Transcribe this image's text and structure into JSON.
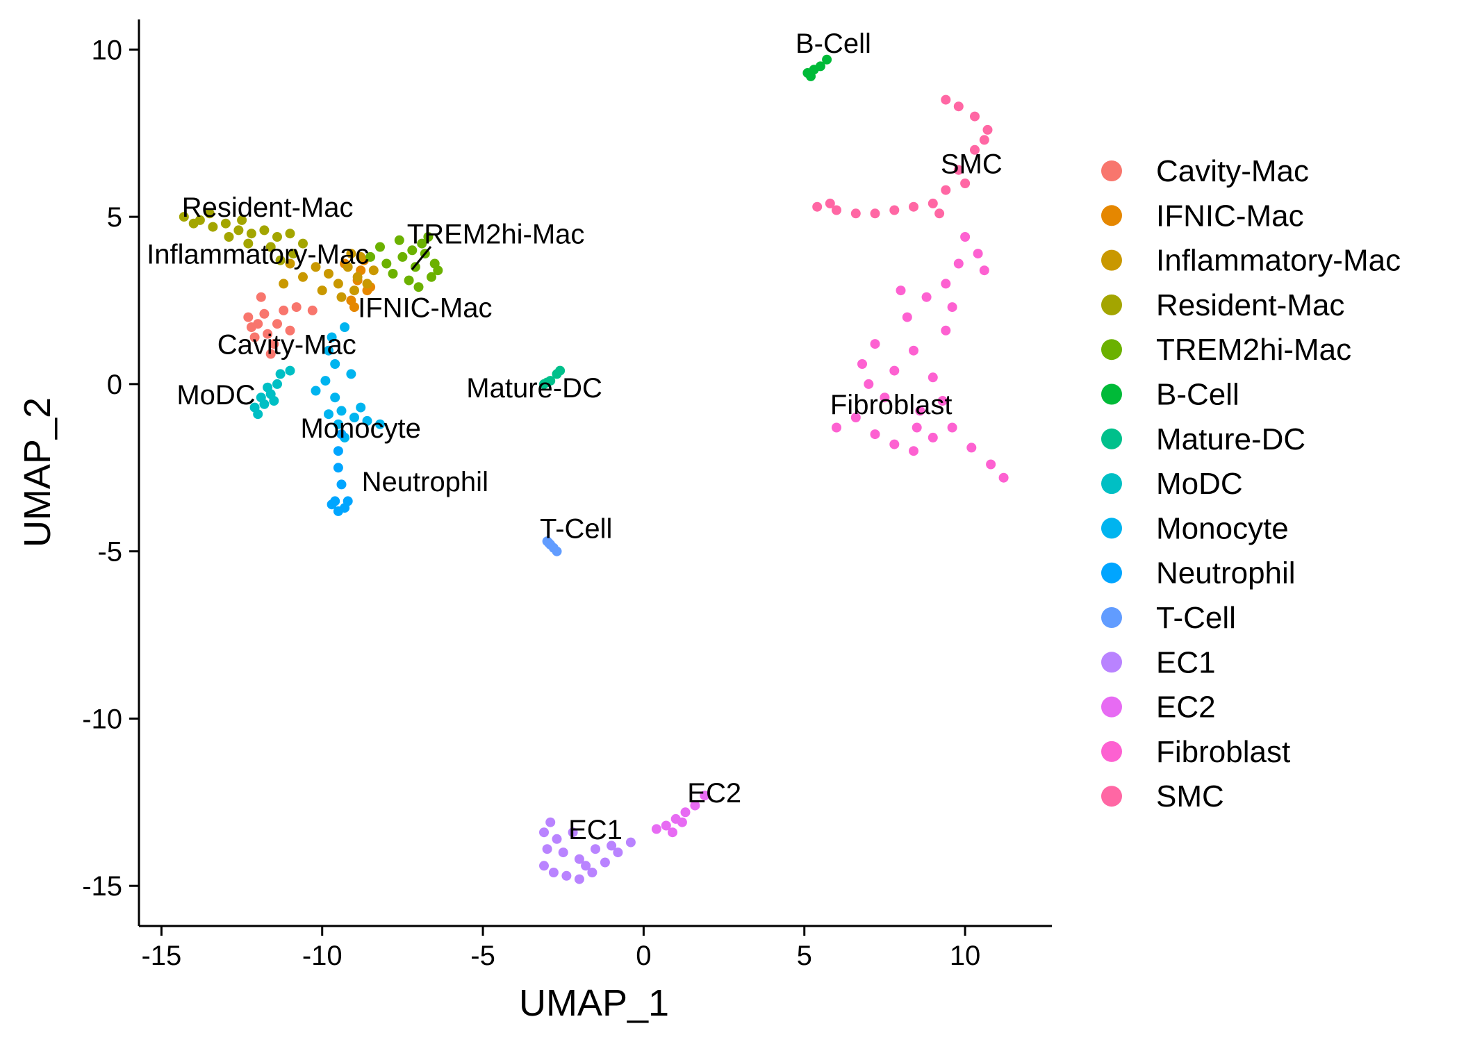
{
  "chart_data": {
    "type": "scatter",
    "title": "",
    "xlabel": "UMAP_1",
    "ylabel": "UMAP_2",
    "xlim": [
      -15.7,
      12.7
    ],
    "ylim": [
      -16.2,
      10.9
    ],
    "xticks": [
      -15,
      -10,
      -5,
      0,
      5,
      10
    ],
    "yticks": [
      10,
      5,
      0,
      -5,
      -10,
      -15
    ],
    "grid": false,
    "legend_position": "right",
    "series": [
      {
        "name": "Cavity-Mac",
        "color": "#F8766D",
        "label": "Cavity-Mac",
        "label_at": [
          -11.1,
          0.9
        ],
        "points": [
          [
            -12,
            1.8
          ],
          [
            -11.7,
            1.5
          ],
          [
            -11.8,
            2.1
          ],
          [
            -12.2,
            1.7
          ],
          [
            -11.5,
            1.2
          ],
          [
            -11.9,
            2.6
          ],
          [
            -11.2,
            2.2
          ],
          [
            -10.8,
            2.3
          ],
          [
            -10.3,
            2.2
          ],
          [
            -12.1,
            1.4
          ],
          [
            -11.6,
            0.9
          ],
          [
            -11.4,
            1.8
          ],
          [
            -12.3,
            2.0
          ],
          [
            -11.0,
            1.6
          ]
        ]
      },
      {
        "name": "IFNIC-Mac",
        "color": "#E58700",
        "label": "IFNIC-Mac",
        "label_at": [
          -6.8,
          2.0
        ],
        "points": [
          [
            -9.3,
            3.6
          ],
          [
            -8.9,
            3.1
          ],
          [
            -8.6,
            2.8
          ],
          [
            -9.1,
            2.5
          ],
          [
            -8.8,
            3.4
          ],
          [
            -8.5,
            2.9
          ],
          [
            -9.0,
            2.3
          ],
          [
            -8.7,
            3.7
          ]
        ]
      },
      {
        "name": "Inflammatory-Mac",
        "color": "#C99800",
        "label": "Inflammatory-Mac",
        "label_at": [
          -12.0,
          3.6
        ],
        "points": [
          [
            -9.2,
            3.5
          ],
          [
            -8.9,
            3.2
          ],
          [
            -8.6,
            3.0
          ],
          [
            -9.5,
            3.0
          ],
          [
            -8.4,
            3.4
          ],
          [
            -9.0,
            2.8
          ],
          [
            -9.8,
            3.3
          ],
          [
            -10.2,
            3.5
          ],
          [
            -10.6,
            3.2
          ],
          [
            -9.4,
            2.6
          ],
          [
            -8.8,
            3.8
          ],
          [
            -11.0,
            3.6
          ],
          [
            -10.0,
            2.8
          ],
          [
            -11.2,
            3.0
          ],
          [
            -9.1,
            3.9
          ]
        ]
      },
      {
        "name": "Resident-Mac",
        "color": "#A3A500",
        "label": "Resident-Mac",
        "label_at": [
          -11.7,
          5.0
        ],
        "points": [
          [
            -14.3,
            5.0
          ],
          [
            -13.8,
            4.9
          ],
          [
            -13.4,
            4.7
          ],
          [
            -13.0,
            4.8
          ],
          [
            -12.6,
            4.6
          ],
          [
            -12.2,
            4.5
          ],
          [
            -11.8,
            4.6
          ],
          [
            -11.4,
            4.4
          ],
          [
            -11.0,
            4.5
          ],
          [
            -10.6,
            4.2
          ],
          [
            -12.9,
            4.4
          ],
          [
            -12.3,
            4.2
          ],
          [
            -11.6,
            4.1
          ],
          [
            -10.9,
            3.9
          ],
          [
            -11.3,
            3.7
          ],
          [
            -14.0,
            4.8
          ],
          [
            -13.5,
            5.1
          ],
          [
            -12.5,
            4.9
          ]
        ]
      },
      {
        "name": "TREM2hi-Mac",
        "color": "#6BB100",
        "label": "TREM2hi-Mac",
        "label_at": [
          -4.6,
          4.2
        ],
        "points": [
          [
            -7.1,
            3.5
          ],
          [
            -6.8,
            3.9
          ],
          [
            -6.6,
            3.2
          ],
          [
            -7.3,
            3.1
          ],
          [
            -6.9,
            4.2
          ],
          [
            -7.5,
            3.8
          ],
          [
            -6.5,
            3.6
          ],
          [
            -7.8,
            3.3
          ],
          [
            -7.0,
            2.9
          ],
          [
            -6.7,
            4.4
          ],
          [
            -8.2,
            4.1
          ],
          [
            -8.5,
            3.8
          ],
          [
            -7.6,
            4.3
          ],
          [
            -8.0,
            3.6
          ],
          [
            -6.4,
            3.4
          ],
          [
            -7.2,
            4.0
          ]
        ]
      },
      {
        "name": "B-Cell",
        "color": "#00BA38",
        "label": "B-Cell",
        "label_at": [
          5.9,
          9.9
        ],
        "points": [
          [
            5.1,
            9.3
          ],
          [
            5.3,
            9.4
          ],
          [
            5.5,
            9.5
          ],
          [
            5.7,
            9.7
          ],
          [
            5.2,
            9.2
          ]
        ]
      },
      {
        "name": "Mature-DC",
        "color": "#00C08B",
        "label": "Mature-DC",
        "label_at": [
          -3.4,
          -0.4
        ],
        "points": [
          [
            -3.1,
            0.0
          ],
          [
            -2.9,
            0.1
          ],
          [
            -2.7,
            0.3
          ],
          [
            -2.6,
            0.4
          ],
          [
            -3.0,
            0.05
          ]
        ]
      },
      {
        "name": "MoDC",
        "color": "#00BFC4",
        "label": "MoDC",
        "label_at": [
          -13.3,
          -0.6
        ],
        "points": [
          [
            -12.0,
            -0.9
          ],
          [
            -11.8,
            -0.6
          ],
          [
            -11.6,
            -0.3
          ],
          [
            -11.4,
            0.0
          ],
          [
            -11.9,
            -0.4
          ],
          [
            -11.7,
            -0.1
          ],
          [
            -12.1,
            -0.7
          ],
          [
            -11.5,
            -0.5
          ],
          [
            -11.3,
            0.3
          ],
          [
            -11.0,
            0.4
          ]
        ]
      },
      {
        "name": "Monocyte",
        "color": "#00B4EF",
        "label": "Monocyte",
        "label_at": [
          -8.8,
          -1.6
        ],
        "points": [
          [
            -9.8,
            1.0
          ],
          [
            -9.6,
            0.6
          ],
          [
            -9.9,
            0.1
          ],
          [
            -9.6,
            -0.4
          ],
          [
            -9.4,
            -0.8
          ],
          [
            -9.0,
            -1.0
          ],
          [
            -8.6,
            -1.1
          ],
          [
            -8.2,
            -1.2
          ],
          [
            -9.5,
            -1.2
          ],
          [
            -9.3,
            -1.6
          ],
          [
            -9.1,
            0.3
          ],
          [
            -9.7,
            1.4
          ],
          [
            -9.3,
            1.7
          ],
          [
            -8.8,
            -0.7
          ],
          [
            -10.2,
            -0.2
          ],
          [
            -9.8,
            -0.9
          ]
        ]
      },
      {
        "name": "Neutrophil",
        "color": "#00A5FF",
        "label": "Neutrophil",
        "label_at": [
          -6.8,
          -3.2
        ],
        "points": [
          [
            -9.5,
            -2.0
          ],
          [
            -9.5,
            -2.5
          ],
          [
            -9.4,
            -3.0
          ],
          [
            -9.6,
            -3.5
          ],
          [
            -9.3,
            -3.7
          ],
          [
            -9.7,
            -3.6
          ],
          [
            -9.5,
            -3.8
          ],
          [
            -9.2,
            -3.5
          ],
          [
            -9.4,
            -1.5
          ]
        ]
      },
      {
        "name": "T-Cell",
        "color": "#619CFF",
        "label": "T-Cell",
        "label_at": [
          -2.1,
          -4.6
        ],
        "points": [
          [
            -3.0,
            -4.7
          ],
          [
            -2.9,
            -4.8
          ],
          [
            -2.8,
            -4.9
          ],
          [
            -2.7,
            -5.0
          ],
          [
            -2.95,
            -4.75
          ]
        ]
      },
      {
        "name": "EC1",
        "color": "#B983FF",
        "label": "EC1",
        "label_at": [
          -1.5,
          -13.6
        ],
        "points": [
          [
            -3.1,
            -13.4
          ],
          [
            -3.0,
            -13.9
          ],
          [
            -3.1,
            -14.4
          ],
          [
            -2.8,
            -14.6
          ],
          [
            -2.4,
            -14.7
          ],
          [
            -2.0,
            -14.8
          ],
          [
            -1.6,
            -14.6
          ],
          [
            -1.2,
            -14.3
          ],
          [
            -0.8,
            -14.0
          ],
          [
            -0.4,
            -13.7
          ],
          [
            -2.5,
            -14.0
          ],
          [
            -2.0,
            -14.2
          ],
          [
            -1.5,
            -13.9
          ],
          [
            -2.7,
            -13.6
          ],
          [
            -2.2,
            -13.4
          ],
          [
            -1.0,
            -13.8
          ],
          [
            -2.9,
            -13.1
          ],
          [
            -1.8,
            -14.4
          ]
        ]
      },
      {
        "name": "EC2",
        "color": "#E76BF3",
        "label": "EC2",
        "label_at": [
          2.2,
          -12.5
        ],
        "points": [
          [
            0.4,
            -13.3
          ],
          [
            0.7,
            -13.2
          ],
          [
            1.0,
            -13.0
          ],
          [
            1.3,
            -12.8
          ],
          [
            1.6,
            -12.6
          ],
          [
            1.9,
            -12.3
          ],
          [
            0.9,
            -13.4
          ],
          [
            1.2,
            -13.1
          ]
        ]
      },
      {
        "name": "Fibroblast",
        "color": "#FD61D1",
        "label": "Fibroblast",
        "label_at": [
          7.7,
          -0.9
        ],
        "points": [
          [
            6.0,
            -1.3
          ],
          [
            6.6,
            -1.0
          ],
          [
            7.2,
            -1.5
          ],
          [
            7.8,
            -1.8
          ],
          [
            8.4,
            -2.0
          ],
          [
            9.0,
            -1.6
          ],
          [
            9.6,
            -1.3
          ],
          [
            10.2,
            -1.9
          ],
          [
            10.8,
            -2.4
          ],
          [
            11.2,
            -2.8
          ],
          [
            6.8,
            0.6
          ],
          [
            7.2,
            1.2
          ],
          [
            7.8,
            0.4
          ],
          [
            8.4,
            1.0
          ],
          [
            9.0,
            0.2
          ],
          [
            7.5,
            -0.4
          ],
          [
            8.6,
            -0.8
          ],
          [
            9.3,
            -0.5
          ],
          [
            8.2,
            2.0
          ],
          [
            8.8,
            2.6
          ],
          [
            9.4,
            3.0
          ],
          [
            9.8,
            3.6
          ],
          [
            10.4,
            3.9
          ],
          [
            10.0,
            4.4
          ],
          [
            9.4,
            1.6
          ],
          [
            8.0,
            2.8
          ],
          [
            7.0,
            0.0
          ],
          [
            9.6,
            2.3
          ],
          [
            10.6,
            3.4
          ],
          [
            8.5,
            -1.3
          ]
        ]
      },
      {
        "name": "SMC",
        "color": "#FF67A4",
        "label": "SMC",
        "label_at": [
          10.2,
          6.3
        ],
        "points": [
          [
            5.4,
            5.3
          ],
          [
            6.0,
            5.2
          ],
          [
            6.6,
            5.1
          ],
          [
            7.2,
            5.1
          ],
          [
            7.8,
            5.2
          ],
          [
            8.4,
            5.3
          ],
          [
            9.0,
            5.4
          ],
          [
            9.4,
            5.8
          ],
          [
            9.8,
            6.4
          ],
          [
            10.3,
            7.0
          ],
          [
            10.7,
            7.6
          ],
          [
            10.3,
            8.0
          ],
          [
            9.8,
            8.3
          ],
          [
            9.4,
            8.5
          ],
          [
            10.0,
            6.0
          ],
          [
            9.2,
            5.1
          ],
          [
            5.8,
            5.4
          ],
          [
            10.6,
            7.3
          ]
        ]
      }
    ]
  }
}
